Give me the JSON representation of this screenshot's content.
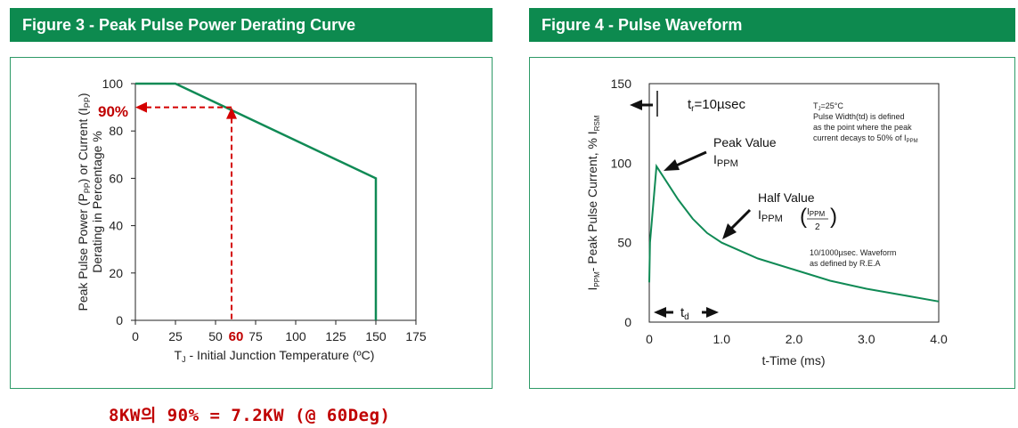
{
  "figure3": {
    "title": "Figure 3 - Peak Pulse Power Derating Curve",
    "ylabel_line1": "Peak Pulse Power (P",
    "ylabel_sub1": "PP",
    "ylabel_mid": ") or Current (I",
    "ylabel_sub2": "PP",
    "ylabel_end": ")",
    "ylabel_line2": "Derating in Percentage %",
    "xlabel_pre": "T",
    "xlabel_sub": "J",
    "xlabel_post": " - Initial Junction Temperature (ºC)",
    "marker_y_label": "90%",
    "marker_x_label": "60",
    "chart_data": {
      "type": "line",
      "x": [
        0,
        25,
        150,
        150
      ],
      "y": [
        100,
        100,
        60,
        0
      ],
      "xlim": [
        0,
        175
      ],
      "ylim": [
        0,
        100
      ],
      "xticks": [
        0,
        25,
        50,
        75,
        100,
        125,
        150,
        175
      ],
      "yticks": [
        0,
        20,
        40,
        60,
        80,
        100
      ],
      "grid": false,
      "line_color": "#108a55",
      "marker_point": {
        "x": 60,
        "y": 90
      },
      "marker_color": "#d40000"
    }
  },
  "figure4": {
    "title": "Figure 4 - Pulse Waveform",
    "ylabel_pre": "I",
    "ylabel_sub1": "PPM",
    "ylabel_mid": "- Peak Pulse Current, % I",
    "ylabel_sub2": "RSM",
    "xlabel": "t-Time (ms)",
    "tr_label": "t",
    "tr_sub": "r",
    "tr_value": "=10µsec",
    "note_line1_pre": "T",
    "note_line1_sub": "J",
    "note_line1_post": "=25°C",
    "note_line2": "Pulse Width(td) is defined",
    "note_line3": "as the point where the peak",
    "note_line4_pre": "current decays to 50% of I",
    "note_line4_sub": "PPM",
    "peak_title": "Peak Value",
    "peak_i": "I",
    "peak_sub": "PPM",
    "half_title": "Half Value",
    "half_i": "I",
    "half_sub": "PPM",
    "half_frac_num_i": "I",
    "half_frac_num_sub": "PPM",
    "half_frac_den": "2",
    "waveform_line1": "10/1000µsec. Waveform",
    "waveform_line2": "as defined by R.E.A",
    "td_label": "t",
    "td_sub": "d",
    "chart_data": {
      "type": "line",
      "x": [
        0,
        0.01,
        0.1,
        0.2,
        0.4,
        0.6,
        0.8,
        1.0,
        1.5,
        2.0,
        2.5,
        3.0,
        3.5,
        4.0
      ],
      "y": [
        25,
        50,
        98,
        91,
        77,
        65,
        56,
        50,
        40,
        33,
        26,
        21,
        17,
        13
      ],
      "xlim": [
        0,
        4.0
      ],
      "ylim": [
        0,
        150
      ],
      "xtick_labels": [
        "0",
        "1.0",
        "2.0",
        "3.0",
        "4.0"
      ],
      "xtick_values": [
        0,
        1,
        2,
        3,
        4
      ],
      "ytick_labels": [
        "0",
        "50",
        "100",
        "150"
      ],
      "ytick_values": [
        0,
        50,
        100,
        150
      ],
      "grid": false,
      "line_color": "#108a55"
    }
  },
  "annotation": "8KW의 90% = 7.2KW (@ 60Deg)"
}
